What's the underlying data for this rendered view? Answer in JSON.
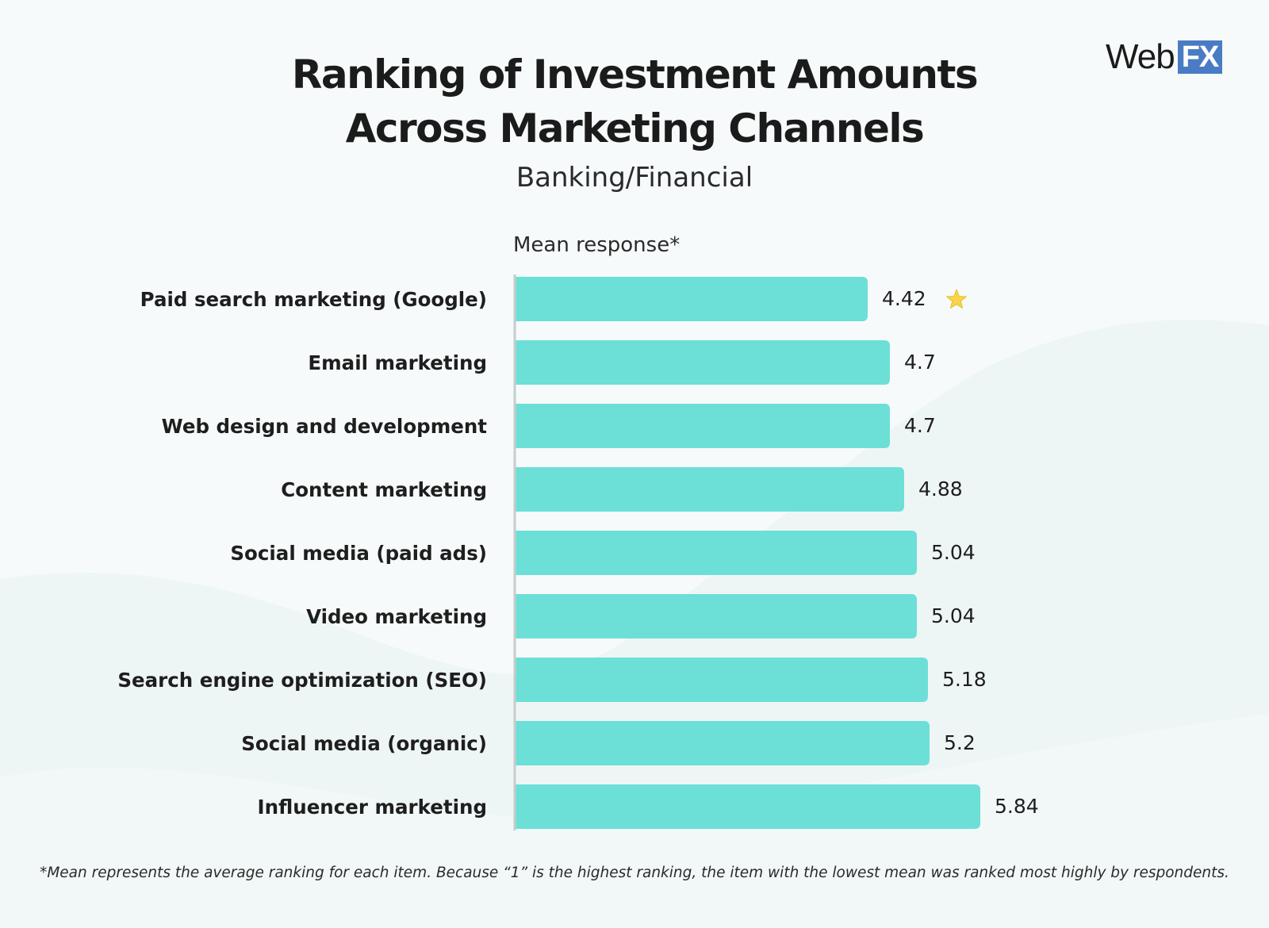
{
  "brand": {
    "logo_text": "Web",
    "logo_badge": "FX",
    "badge_color": "#4a7cc4"
  },
  "title_line1": "Ranking of Investment Amounts",
  "title_line2": "Across Marketing Channels",
  "subtitle": "Banking/Financial",
  "footnote": "*Mean represents the average ranking for each item. Because “1” is the highest ranking, the item with the lowest mean was ranked most highly by respondents.",
  "colors": {
    "bar": "#6cdfd7",
    "axis": "#c7cccc",
    "text": "#1e1e1e",
    "star": "#f7d54a"
  },
  "highlight_icon": "star-icon",
  "chart_data": {
    "type": "bar",
    "orientation": "horizontal",
    "title": "Ranking of Investment Amounts Across Marketing Channels",
    "subtitle": "Banking/Financial",
    "xlabel": "Mean response*",
    "ylabel": "",
    "xlim": [
      0,
      6
    ],
    "categories": [
      "Paid search marketing (Google)",
      "Email marketing",
      "Web design and development",
      "Content marketing",
      "Social media (paid ads)",
      "Video marketing",
      "Search engine optimization (SEO)",
      "Social media (organic)",
      "Influencer marketing"
    ],
    "values": [
      4.42,
      4.7,
      4.7,
      4.88,
      5.04,
      5.04,
      5.18,
      5.2,
      5.84
    ],
    "value_labels": [
      "4.42",
      "4.7",
      "4.7",
      "4.88",
      "5.04",
      "5.04",
      "5.18",
      "5.2",
      "5.84"
    ],
    "highlight_index": 0
  }
}
